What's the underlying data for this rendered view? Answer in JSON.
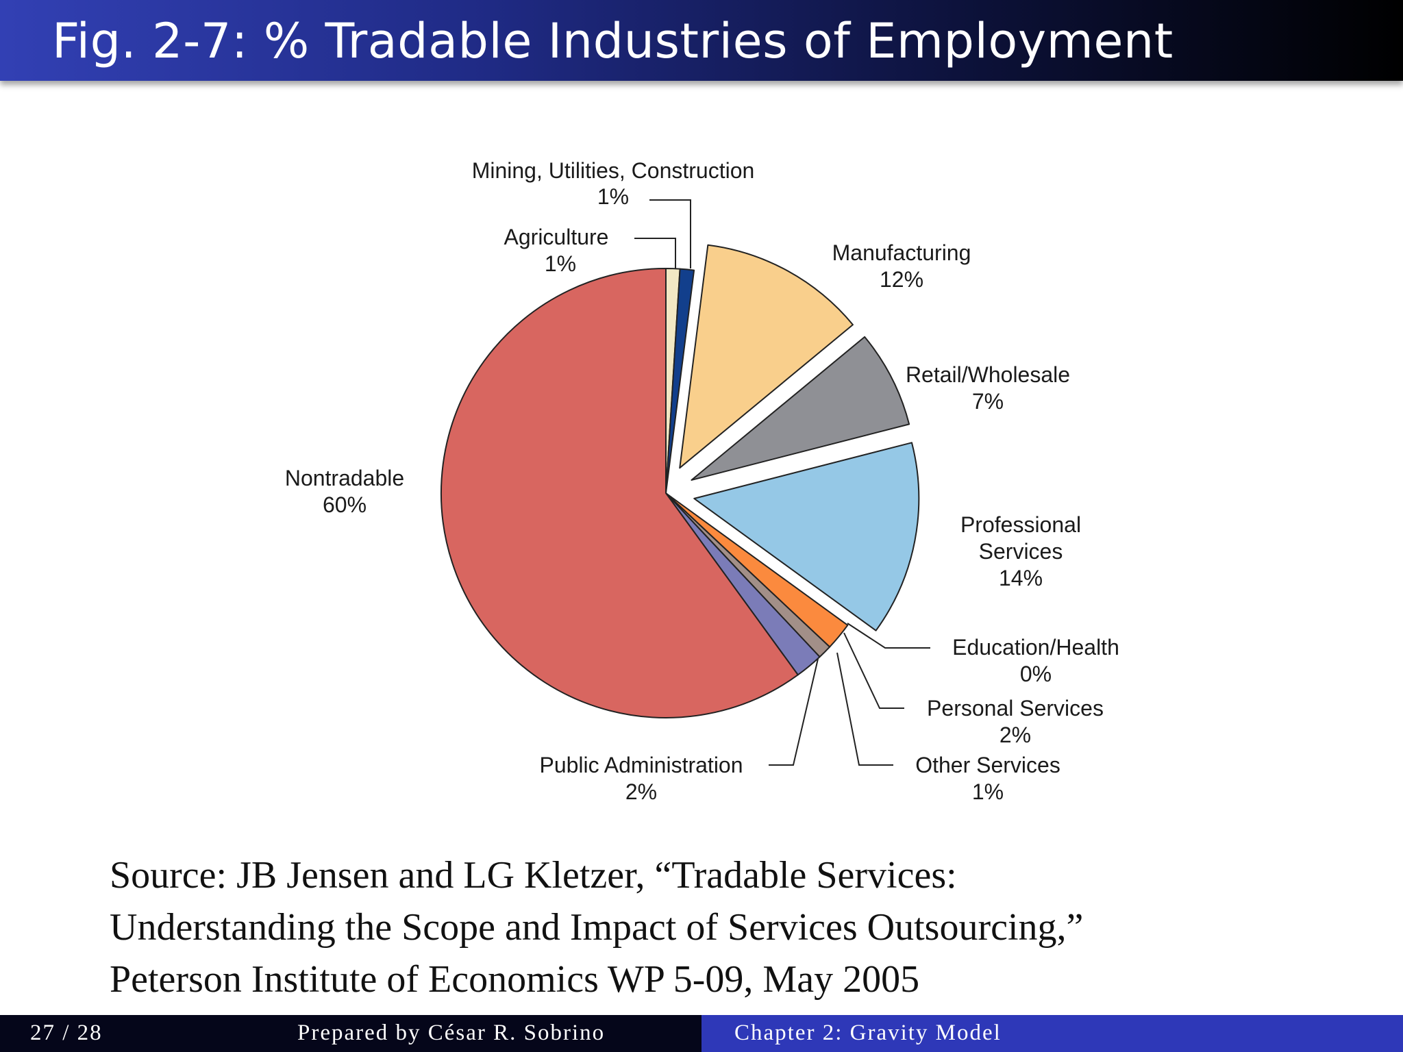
{
  "header": {
    "title": "Fig. 2-7: % Tradable Industries of Employment"
  },
  "chart_data": {
    "type": "pie",
    "title": "",
    "slices": [
      {
        "name": "Agriculture",
        "value": 1,
        "pct_label": "1%",
        "color": "#f2e8c4",
        "exploded": false
      },
      {
        "name": "Mining, Utilities, Construction",
        "value": 1,
        "pct_label": "1%",
        "color": "#123f8c",
        "exploded": false
      },
      {
        "name": "Manufacturing",
        "value": 12,
        "pct_label": "12%",
        "color": "#f9cf8c",
        "exploded": true
      },
      {
        "name": "Retail/Wholesale",
        "value": 7,
        "pct_label": "7%",
        "color": "#8f9095",
        "exploded": true
      },
      {
        "name": "Professional Services",
        "value": 14,
        "pct_label": "14%",
        "color": "#95c8e6",
        "exploded": true
      },
      {
        "name": "Education/Health",
        "value": 0,
        "pct_label": "0%",
        "color": "#ffffff",
        "exploded": false
      },
      {
        "name": "Personal Services",
        "value": 2,
        "pct_label": "2%",
        "color": "#fb8a3e",
        "exploded": false
      },
      {
        "name": "Other Services",
        "value": 1,
        "pct_label": "1%",
        "color": "#a28f88",
        "exploded": false
      },
      {
        "name": "Public Administration",
        "value": 2,
        "pct_label": "2%",
        "color": "#7b7cb8",
        "exploded": false
      },
      {
        "name": "Nontradable",
        "value": 60,
        "pct_label": "60%",
        "color": "#d86660",
        "exploded": false
      }
    ]
  },
  "labels": {
    "mining_l1": "Mining, Utilities, Construction",
    "mining_pct": "1%",
    "agri_l1": "Agriculture",
    "agri_pct": "1%",
    "manu_l1": "Manufacturing",
    "manu_pct": "12%",
    "retail_l1": "Retail/Wholesale",
    "retail_pct": "7%",
    "prof_l1": "Professional",
    "prof_l2": "Services",
    "prof_pct": "14%",
    "edu_l1": "Education/Health",
    "edu_pct": "0%",
    "pers_l1": "Personal Services",
    "pers_pct": "2%",
    "other_l1": "Other Services",
    "other_pct": "1%",
    "pub_l1": "Public Administration",
    "pub_pct": "2%",
    "non_l1": "Nontradable",
    "non_pct": "60%"
  },
  "source": {
    "line1": "Source: JB Jensen and LG Kletzer, “Tradable Services:",
    "line2": "Understanding the Scope and Impact of Services Outsourcing,”",
    "line3": "Peterson Institute of Economics WP 5-09, May 2005"
  },
  "footer": {
    "page": "27 / 28",
    "author": "Prepared by César R. Sobrino",
    "chapter": "Chapter 2: Gravity Model"
  }
}
